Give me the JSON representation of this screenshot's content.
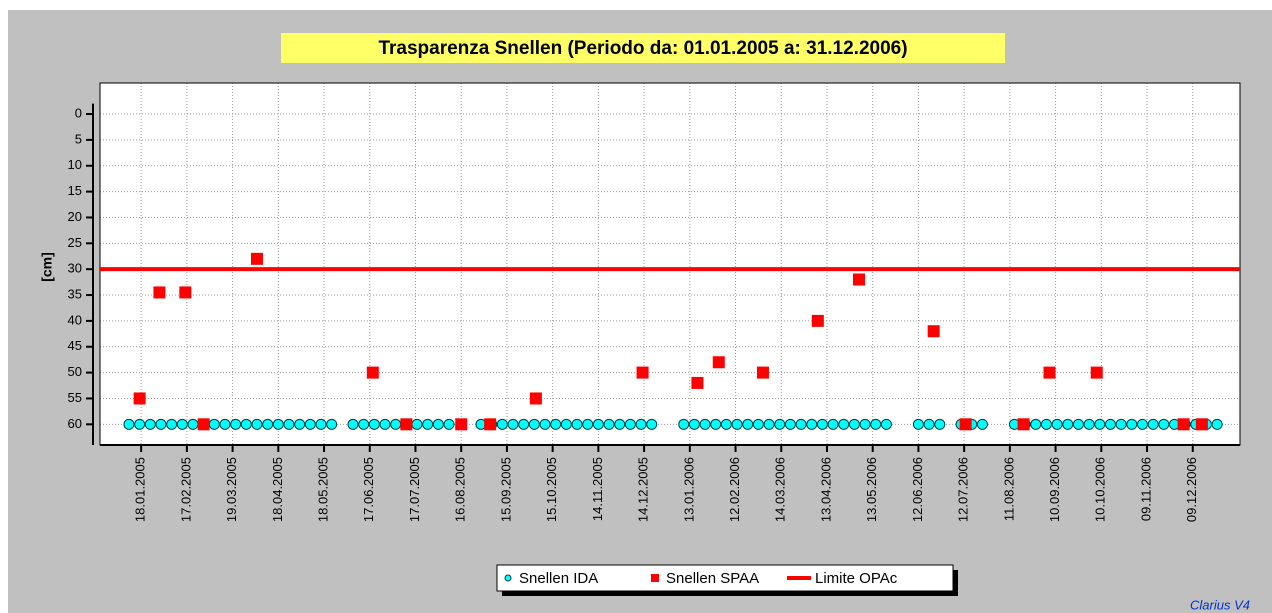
{
  "chart_data": {
    "type": "scatter",
    "title": "Trasparenza Snellen (Periodo da: 01.01.2005 a: 31.12.2006)",
    "y_label": "[cm]",
    "annotation": "Clarius V4",
    "xlim": [
      "22.12.2004",
      "09.01.2007"
    ],
    "xticks": [
      "18.01.2005",
      "17.02.2005",
      "19.03.2005",
      "18.04.2005",
      "18.05.2005",
      "17.06.2005",
      "17.07.2005",
      "16.08.2005",
      "15.09.2005",
      "15.10.2005",
      "14.11.2005",
      "14.12.2005",
      "13.01.2006",
      "12.02.2006",
      "14.03.2006",
      "13.04.2006",
      "13.05.2006",
      "12.06.2006",
      "12.07.2006",
      "11.08.2006",
      "10.09.2006",
      "10.10.2006",
      "09.11.2006",
      "09.12.2006"
    ],
    "ylim": [
      -6,
      64
    ],
    "y_inverted": true,
    "yticks": [
      0,
      5,
      10,
      15,
      20,
      25,
      30,
      35,
      40,
      45,
      50,
      55,
      60
    ],
    "grid": true,
    "legend": "bottom",
    "series": [
      {
        "name": "Snellen IDA",
        "color": "#00ffff",
        "marker": "circle",
        "x": [
          "10.01.2005",
          "17.01.2005",
          "24.01.2005",
          "31.01.2005",
          "07.02.2005",
          "14.02.2005",
          "21.02.2005",
          "28.02.2005",
          "07.03.2005",
          "14.03.2005",
          "21.03.2005",
          "28.03.2005",
          "04.04.2005",
          "11.04.2005",
          "18.04.2005",
          "25.04.2005",
          "02.05.2005",
          "09.05.2005",
          "16.05.2005",
          "23.05.2005",
          "06.06.2005",
          "13.06.2005",
          "20.06.2005",
          "27.06.2005",
          "04.07.2005",
          "11.07.2005",
          "18.07.2005",
          "25.07.2005",
          "01.08.2005",
          "08.08.2005",
          "29.08.2005",
          "05.09.2005",
          "12.09.2005",
          "19.09.2005",
          "26.09.2005",
          "03.10.2005",
          "10.10.2005",
          "17.10.2005",
          "24.10.2005",
          "31.10.2005",
          "07.11.2005",
          "14.11.2005",
          "21.11.2005",
          "28.11.2005",
          "05.12.2005",
          "12.12.2005",
          "19.12.2005",
          "09.01.2006",
          "16.01.2006",
          "23.01.2006",
          "30.01.2006",
          "06.02.2006",
          "13.02.2006",
          "20.02.2006",
          "27.02.2006",
          "06.03.2006",
          "13.03.2006",
          "20.03.2006",
          "27.03.2006",
          "03.04.2006",
          "10.04.2006",
          "17.04.2006",
          "24.04.2006",
          "01.05.2006",
          "08.05.2006",
          "15.05.2006",
          "22.05.2006",
          "12.06.2006",
          "19.06.2006",
          "26.06.2006",
          "10.07.2006",
          "17.07.2006",
          "24.07.2006",
          "14.08.2006",
          "21.08.2006",
          "28.08.2006",
          "04.09.2006",
          "11.09.2006",
          "18.09.2006",
          "25.09.2006",
          "02.10.2006",
          "09.10.2006",
          "16.10.2006",
          "23.10.2006",
          "30.10.2006",
          "06.11.2006",
          "13.11.2006",
          "20.11.2006",
          "27.11.2006",
          "04.12.2006",
          "11.12.2006",
          "18.12.2006",
          "25.12.2006"
        ],
        "values": [
          60,
          60,
          60,
          60,
          60,
          60,
          60,
          60,
          60,
          60,
          60,
          60,
          60,
          60,
          60,
          60,
          60,
          60,
          60,
          60,
          60,
          60,
          60,
          60,
          60,
          60,
          60,
          60,
          60,
          60,
          60,
          60,
          60,
          60,
          60,
          60,
          60,
          60,
          60,
          60,
          60,
          60,
          60,
          60,
          60,
          60,
          60,
          60,
          60,
          60,
          60,
          60,
          60,
          60,
          60,
          60,
          60,
          60,
          60,
          60,
          60,
          60,
          60,
          60,
          60,
          60,
          60,
          60,
          60,
          60,
          60,
          60,
          60,
          60,
          60,
          60,
          60,
          60,
          60,
          60,
          60,
          60,
          60,
          60,
          60,
          60,
          60,
          60,
          60,
          60,
          60,
          60,
          60
        ]
      },
      {
        "name": "Snellen SPAA",
        "color": "#ff0000",
        "marker": "square",
        "x": [
          "17.01.2005",
          "30.01.2005",
          "16.02.2005",
          "28.02.2005",
          "04.04.2005",
          "19.06.2005",
          "11.07.2005",
          "16.08.2005",
          "04.09.2005",
          "04.10.2005",
          "13.12.2005",
          "18.01.2006",
          "01.02.2006",
          "02.03.2006",
          "07.04.2006",
          "04.05.2006",
          "22.06.2006",
          "13.07.2006",
          "20.08.2006",
          "06.09.2006",
          "07.10.2006",
          "03.12.2006",
          "15.12.2006"
        ],
        "values": [
          55,
          34.5,
          34.5,
          60,
          28,
          50,
          60,
          60,
          60,
          55,
          50,
          52,
          48,
          50,
          40,
          32,
          42,
          60,
          60,
          50,
          50,
          60,
          60
        ]
      },
      {
        "name": "Limite OPAc",
        "color": "#ff0000",
        "marker": "line",
        "x": [
          "22.12.2004",
          "09.01.2007"
        ],
        "values": [
          30,
          30
        ]
      }
    ]
  }
}
